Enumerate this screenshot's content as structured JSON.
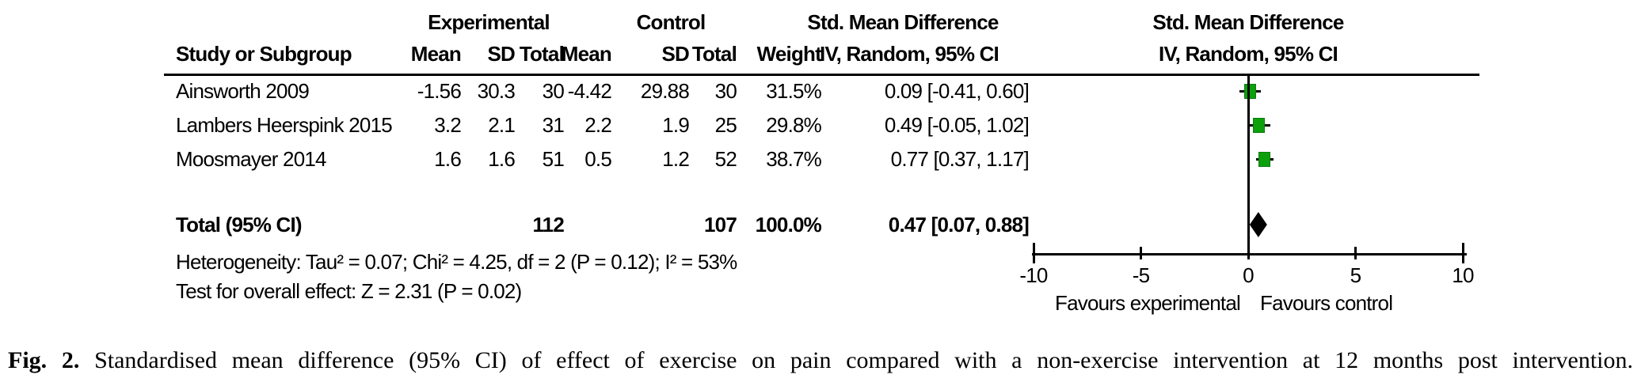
{
  "figure": {
    "group_headers": {
      "experimental": "Experimental",
      "control": "Control",
      "smd_left": "Std. Mean Difference",
      "smd_right": "Std. Mean Difference"
    },
    "column_headers": {
      "study": "Study or Subgroup",
      "mean": "Mean",
      "sd": "SD",
      "total": "Total",
      "mean2": "Mean",
      "sd2": "SD",
      "total2": "Total",
      "weight": "Weight",
      "ci_left": "IV, Random, 95% CI",
      "ci_right": "IV, Random, 95% CI"
    },
    "heterogeneity": "Heterogeneity: Tau² = 0.07; Chi² = 4.25, df = 2 (P = 0.12); I² = 53%",
    "overall_effect": "Test for overall effect: Z = 2.31 (P = 0.02)",
    "favours_left": "Favours experimental",
    "favours_right": "Favours control"
  },
  "caption": {
    "label": "Fig. 2.",
    "text": "Standardised mean difference (95% CI) of effect of exercise on pain compared with a non-exercise intervention at 12 months post intervention."
  },
  "chart_data": {
    "type": "forest",
    "effect_measure": "Std. Mean Difference (IV, Random, 95% CI)",
    "studies": [
      {
        "name": "Ainsworth 2009",
        "mean_e": "-1.56",
        "sd_e": "30.3",
        "total_e": "30",
        "mean_c": "-4.42",
        "sd_c": "29.88",
        "total_c": "30",
        "weight": "31.5%",
        "ci_label": "0.09 [-0.41, 0.60]",
        "est": 0.09,
        "lo": -0.41,
        "hi": 0.6
      },
      {
        "name": "Lambers Heerspink 2015",
        "mean_e": "3.2",
        "sd_e": "2.1",
        "total_e": "31",
        "mean_c": "2.2",
        "sd_c": "1.9",
        "total_c": "25",
        "weight": "29.8%",
        "ci_label": "0.49 [-0.05, 1.02]",
        "est": 0.49,
        "lo": -0.05,
        "hi": 1.02
      },
      {
        "name": "Moosmayer 2014",
        "mean_e": "1.6",
        "sd_e": "1.6",
        "total_e": "51",
        "mean_c": "0.5",
        "sd_c": "1.2",
        "total_c": "52",
        "weight": "38.7%",
        "ci_label": "0.77 [0.37, 1.17]",
        "est": 0.77,
        "lo": 0.37,
        "hi": 1.17
      }
    ],
    "total": {
      "label": "Total (95% CI)",
      "total_e": "112",
      "total_c": "107",
      "weight": "100.0%",
      "ci_label": "0.47 [0.07, 0.88]",
      "est": 0.47,
      "lo": 0.07,
      "hi": 0.88
    },
    "axis": {
      "xlim": [
        -10,
        10
      ],
      "ticks": [
        -10,
        -5,
        0,
        5,
        10
      ],
      "tick_labels": [
        "-10",
        "-5",
        "0",
        "5",
        "10"
      ],
      "label_left": "Favours experimental",
      "label_right": "Favours control"
    },
    "colors": {
      "marker_green": "#0da00d",
      "marker_border": "#0a7d0a",
      "diamond": "#000000",
      "line": "#000000"
    }
  }
}
